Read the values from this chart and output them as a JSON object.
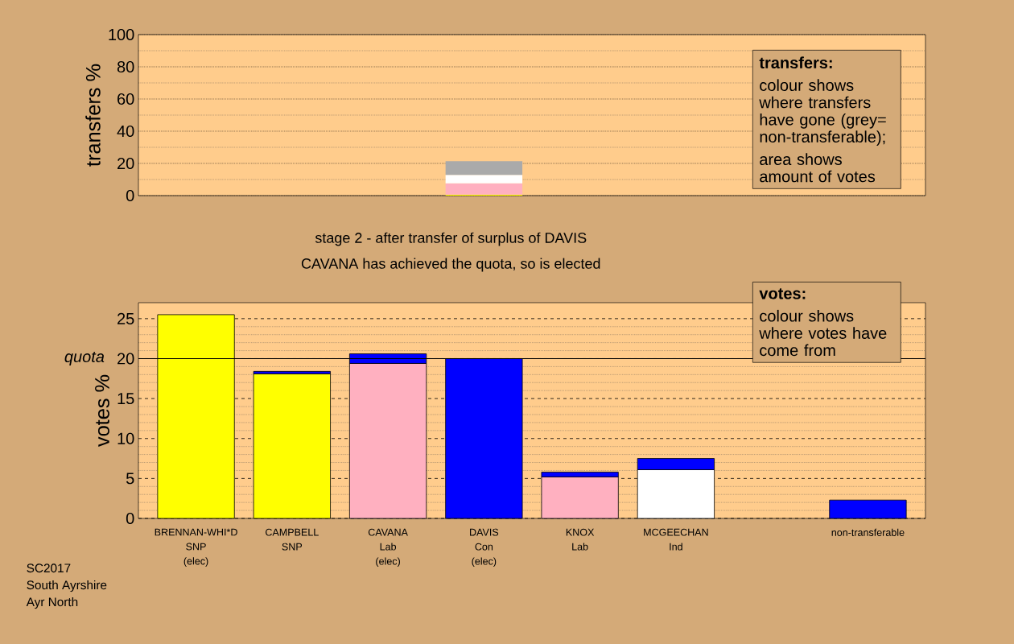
{
  "chart_data": [
    {
      "type": "bar",
      "stacked": true,
      "ylabel": "transfers %",
      "categories": [
        null,
        null,
        null,
        null,
        null,
        null,
        null,
        null
      ],
      "series": [
        {
          "color": "#ffff00",
          "values": [
            null,
            null,
            null,
            0.6,
            null,
            null,
            null,
            null
          ]
        },
        {
          "color": "#ffb0c0",
          "values": [
            null,
            null,
            null,
            7.0,
            null,
            null,
            null,
            null
          ]
        },
        {
          "color": "#ffffff",
          "values": [
            null,
            null,
            null,
            5.3,
            null,
            null,
            null,
            null
          ]
        },
        {
          "color": "#aaaaaa",
          "values": [
            null,
            null,
            null,
            8.5,
            null,
            null,
            null,
            null
          ]
        }
      ],
      "ylim": [
        0,
        100
      ],
      "yticks": [
        0,
        20,
        40,
        60,
        80,
        100
      ],
      "grid": "y",
      "tick_labels": "y",
      "annotations": [
        "transfers:",
        "colour shows where transfers have gone (grey= non-transferable);",
        "area shows amount of votes"
      ]
    },
    {
      "type": "bar",
      "stacked": true,
      "title": "stage 2 - after transfer of surplus of DAVIS",
      "subtitle": "CAVANA has achieved the quota, so is elected",
      "ylabel": "votes %",
      "categories": [
        "BRENNAN-WHI*D SNP (elec)",
        "CAMPBELL SNP",
        "CAVANA Lab (elec)",
        "DAVIS Con (elec)",
        "KNOX Lab",
        "MCGEECHAN Ind",
        null,
        "non-transferable"
      ],
      "series": [
        {
          "color": "#ffff00",
          "values": [
            25.5,
            18.1,
            null,
            null,
            null,
            null,
            null,
            null
          ]
        },
        {
          "color": "#ffb0c0",
          "values": [
            null,
            null,
            19.4,
            null,
            5.2,
            null,
            null,
            null
          ]
        },
        {
          "color": "#ffffff",
          "values": [
            null,
            null,
            null,
            null,
            null,
            6.1,
            null,
            null
          ]
        },
        {
          "color": "#0000ff",
          "values": [
            null,
            0.3,
            1.2,
            20.0,
            0.6,
            1.4,
            null,
            2.3
          ]
        }
      ],
      "ylim": [
        0,
        27
      ],
      "yticks": [
        0,
        5,
        10,
        15,
        20,
        25
      ],
      "grid": "y",
      "ref_lines": [
        {
          "axis": "y",
          "value": 20,
          "label": "quota"
        }
      ],
      "annotations": [
        "votes:",
        "colour shows where votes have come from",
        "SC2017",
        "South Ayrshire",
        "Ayr North"
      ]
    }
  ]
}
